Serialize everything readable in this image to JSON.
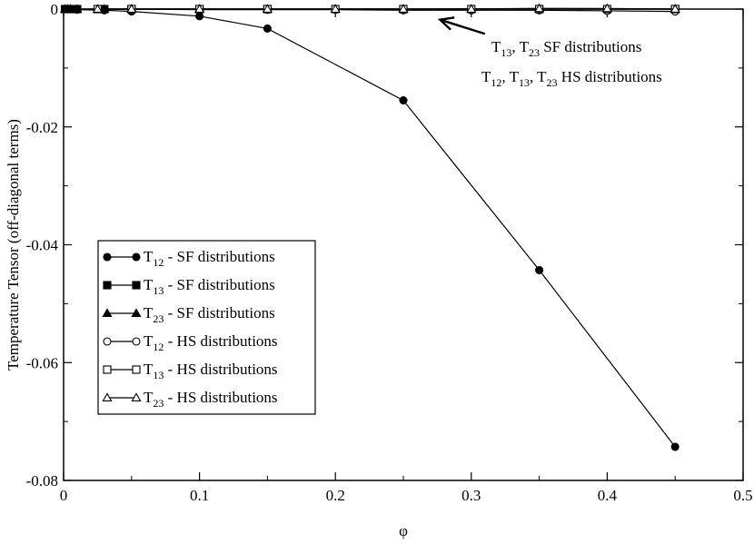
{
  "chart_data": {
    "type": "line",
    "title": "",
    "xlabel": "φ",
    "ylabel": "Temperature Tensor (off-diagonal terms)",
    "xlim": [
      0,
      0.5
    ],
    "ylim": [
      -0.08,
      0
    ],
    "xticks": [
      0,
      0.1,
      0.2,
      0.3,
      0.4,
      0.5
    ],
    "xtick_labels": [
      "0",
      "0.1",
      "0.2",
      "0.3",
      "0.4",
      "0.5"
    ],
    "yticks": [
      0,
      -0.02,
      -0.04,
      -0.06,
      -0.08
    ],
    "ytick_labels": [
      "0",
      "-0.02",
      "-0.04",
      "-0.06",
      "-0.08"
    ],
    "grid": false,
    "legend_placement": "middle-left",
    "series": [
      {
        "name": "T12 - SF distributions",
        "label_main": "T",
        "label_sub": "12",
        "label_rest": " - SF distributions",
        "marker": "circle",
        "filled": true,
        "x": [
          0.001,
          0.003,
          0.005,
          0.01,
          0.03,
          0.05,
          0.1,
          0.15,
          0.25,
          0.35,
          0.45
        ],
        "y": [
          0,
          0,
          0,
          -0.0001,
          -0.0002,
          -0.0004,
          -0.0012,
          -0.0033,
          -0.0155,
          -0.0443,
          -0.0743
        ]
      },
      {
        "name": "T13 - SF distributions",
        "label_main": "T",
        "label_sub": "13",
        "label_rest": " - SF distributions",
        "marker": "square",
        "filled": true,
        "x": [
          0.001,
          0.003,
          0.005,
          0.01,
          0.03,
          0.05,
          0.1,
          0.15,
          0.25,
          0.35,
          0.45
        ],
        "y": [
          0,
          0,
          0,
          0,
          0,
          0,
          0,
          0,
          0,
          0,
          0
        ]
      },
      {
        "name": "T23 - SF distributions",
        "label_main": "T",
        "label_sub": "23",
        "label_rest": " - SF distributions",
        "marker": "triangle",
        "filled": true,
        "x": [
          0.001,
          0.003,
          0.005,
          0.01,
          0.03,
          0.05,
          0.1,
          0.15,
          0.25,
          0.35,
          0.45
        ],
        "y": [
          0,
          0,
          0,
          0,
          0,
          0,
          0,
          0,
          0,
          0.0001,
          0
        ]
      },
      {
        "name": "T12 - HS distributions",
        "label_main": "T",
        "label_sub": "12",
        "label_rest": " - HS distributions",
        "marker": "circle",
        "filled": false,
        "x": [
          0.025,
          0.05,
          0.1,
          0.15,
          0.2,
          0.25,
          0.3,
          0.35,
          0.4,
          0.45
        ],
        "y": [
          0,
          0,
          -0.0001,
          -0.0001,
          -0.0001,
          -0.0002,
          -0.0002,
          -0.0002,
          -0.0003,
          -0.0004
        ]
      },
      {
        "name": "T13 - HS distributions",
        "label_main": "T",
        "label_sub": "13",
        "label_rest": " - HS distributions",
        "marker": "square",
        "filled": false,
        "x": [
          0.025,
          0.05,
          0.1,
          0.15,
          0.2,
          0.25,
          0.3,
          0.35,
          0.4,
          0.45
        ],
        "y": [
          0,
          0,
          0,
          0,
          0,
          0,
          0,
          0,
          0,
          0
        ]
      },
      {
        "name": "T23 - HS distributions",
        "label_main": "T",
        "label_sub": "23",
        "label_rest": " - HS distributions",
        "marker": "triangle",
        "filled": false,
        "x": [
          0.025,
          0.05,
          0.1,
          0.15,
          0.2,
          0.25,
          0.3,
          0.35,
          0.4,
          0.45
        ],
        "y": [
          0,
          0,
          0,
          0,
          0,
          0,
          0,
          0.0001,
          0.0001,
          0
        ]
      }
    ],
    "annotation": {
      "line1": [
        {
          "t": "T"
        },
        {
          "sub": "13"
        },
        {
          "t": ", T"
        },
        {
          "sub": "23"
        },
        {
          "t": " SF distributions"
        }
      ],
      "line2": [
        {
          "t": "T"
        },
        {
          "sub": "12"
        },
        {
          "t": ", T"
        },
        {
          "sub": "13"
        },
        {
          "t": ", T"
        },
        {
          "sub": "23"
        },
        {
          "t": " HS distributions"
        }
      ],
      "arrow_from": [
        0.31,
        -0.0042
      ],
      "arrow_to": [
        0.277,
        -0.0018
      ]
    }
  }
}
